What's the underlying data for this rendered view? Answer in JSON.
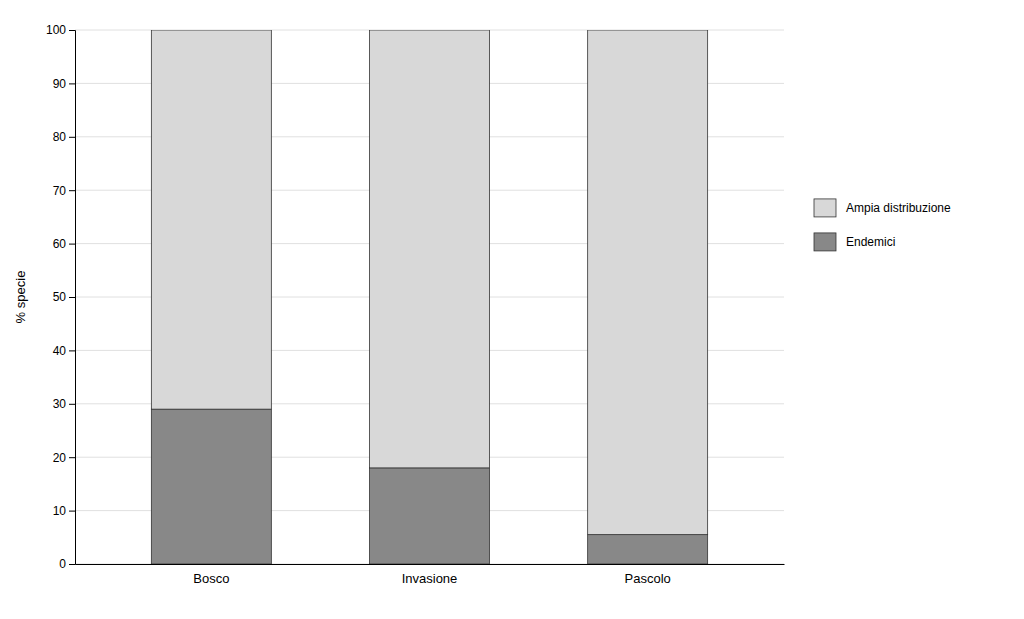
{
  "chart_data": {
    "type": "bar",
    "stacked": true,
    "categories": [
      "Bosco",
      "Invasione",
      "Pascolo"
    ],
    "series": [
      {
        "name": "Endemici",
        "color": "#888888",
        "values": [
          29,
          18,
          5.5
        ]
      },
      {
        "name": "Ampia distribuzione",
        "color": "#d8d8d8",
        "values": [
          71,
          82,
          94.5
        ]
      }
    ],
    "ylabel": "% specie",
    "ylim": [
      0,
      100
    ],
    "yticks": [
      0,
      10,
      20,
      30,
      40,
      50,
      60,
      70,
      80,
      90,
      100
    ],
    "grid": true,
    "legend": "right"
  }
}
